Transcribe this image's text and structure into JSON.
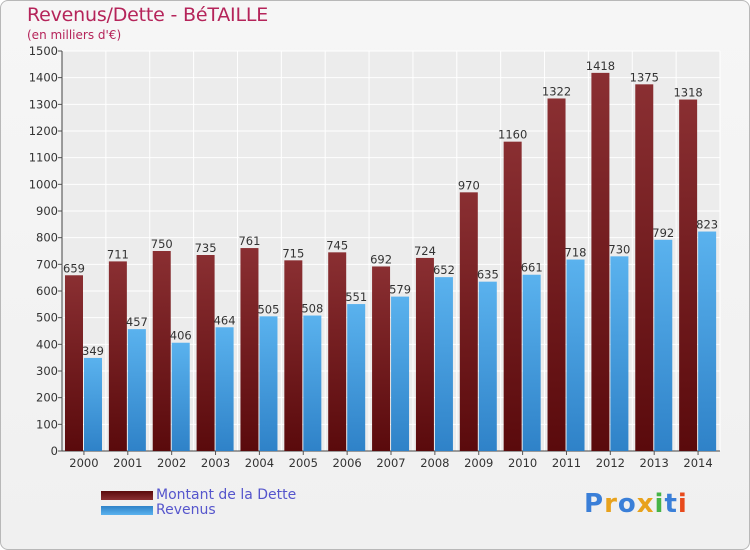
{
  "title": "Revenus/Dette - BéTAILLE",
  "subtitle": "(en milliers d'€)",
  "logo": [
    "P",
    "r",
    "o",
    "x",
    "i",
    "t",
    "i"
  ],
  "logo_colors": [
    "#3a7fd8",
    "#e8a21c",
    "#3a7fd8",
    "#e8a21c",
    "#46b446",
    "#3a7fd8",
    "#e84a1c"
  ],
  "chart_data": {
    "type": "bar",
    "categories": [
      "2000",
      "2001",
      "2002",
      "2003",
      "2004",
      "2005",
      "2006",
      "2007",
      "2008",
      "2009",
      "2010",
      "2011",
      "2012",
      "2013",
      "2014"
    ],
    "series": [
      {
        "name": "Montant de la Dette",
        "values": [
          659,
          711,
          750,
          735,
          761,
          715,
          745,
          692,
          724,
          970,
          1160,
          1322,
          1418,
          1375,
          1318
        ],
        "color": "#7a1f22"
      },
      {
        "name": "Revenus",
        "values": [
          349,
          457,
          406,
          464,
          505,
          508,
          551,
          579,
          652,
          635,
          661,
          718,
          730,
          792,
          823
        ],
        "color": "#4aa0e2"
      }
    ],
    "ylim": [
      0,
      1500
    ],
    "yticks": [
      0,
      100,
      200,
      300,
      400,
      500,
      600,
      700,
      800,
      900,
      1000,
      1100,
      1200,
      1300,
      1400,
      1500
    ],
    "grid": true,
    "legend": "bottom-left"
  }
}
